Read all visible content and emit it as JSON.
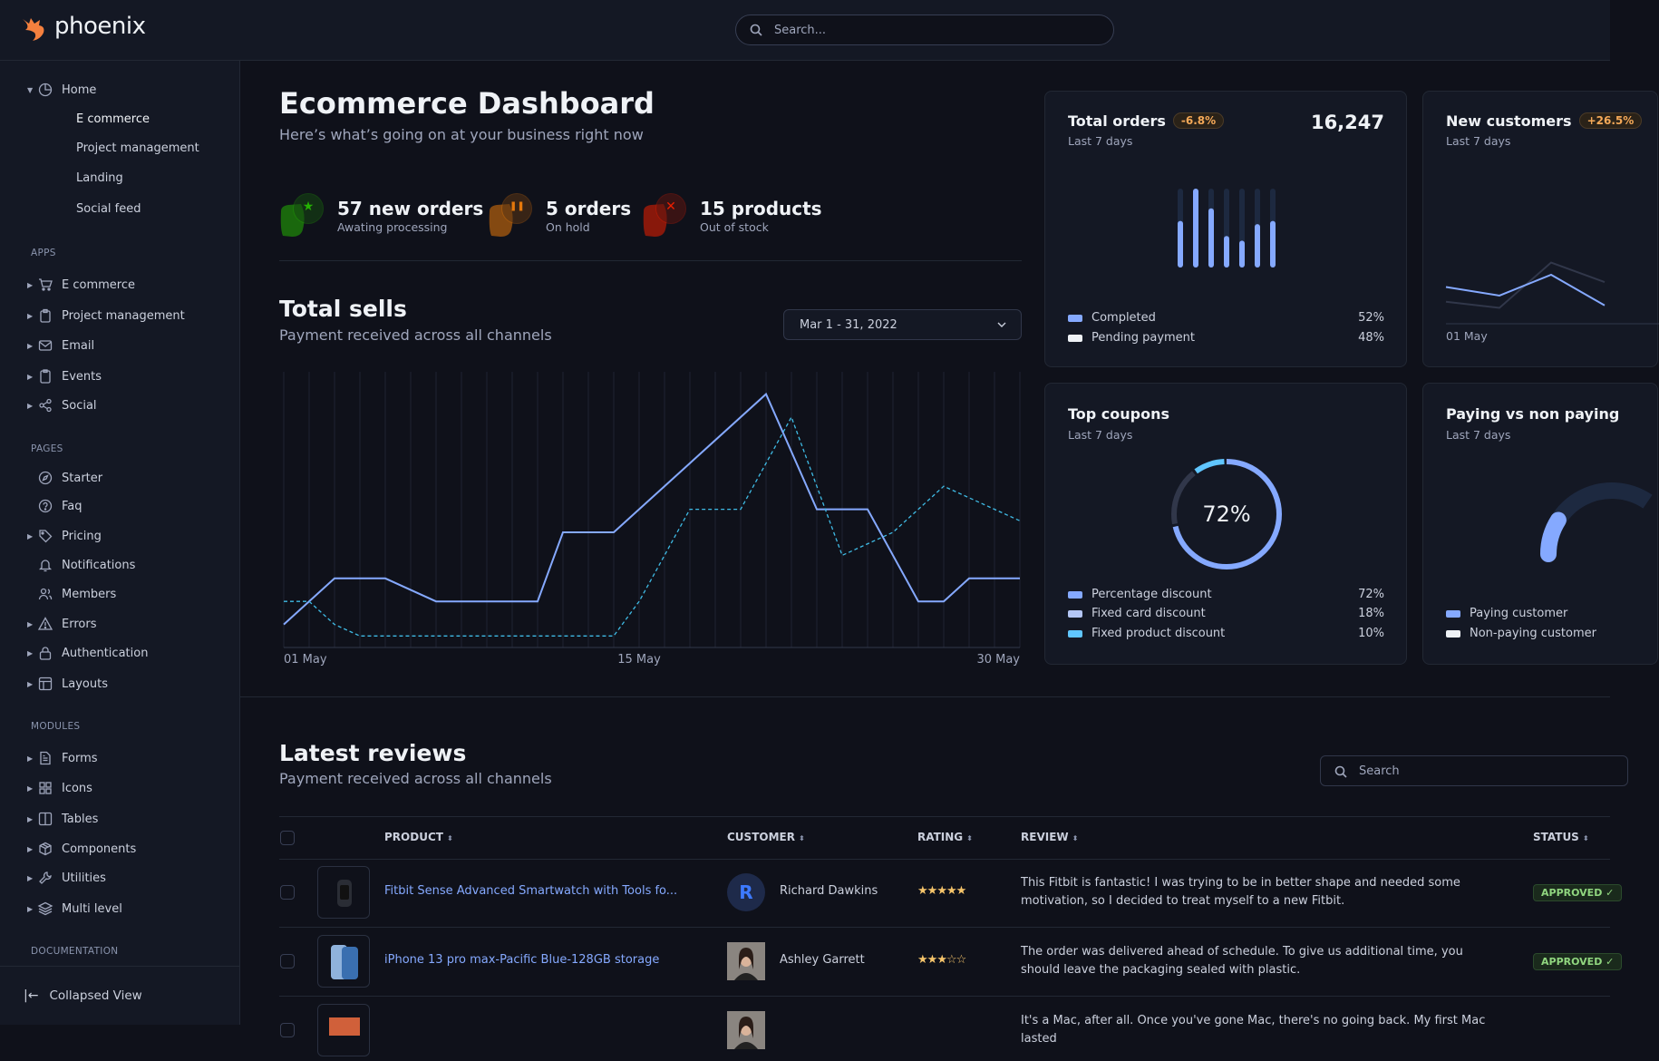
{
  "header": {
    "brand": "phoenix",
    "search_placeholder": "Search..."
  },
  "sidebar": {
    "home": {
      "label": "Home",
      "children": [
        "E commerce",
        "Project management",
        "Landing",
        "Social feed"
      ],
      "active": "E commerce"
    },
    "sections": [
      {
        "title": "APPS",
        "items": [
          {
            "label": "E commerce",
            "icon": "cart-icon"
          },
          {
            "label": "Project management",
            "icon": "clipboard-icon"
          },
          {
            "label": "Email",
            "icon": "mail-icon"
          },
          {
            "label": "Events",
            "icon": "bookmark-icon"
          },
          {
            "label": "Social",
            "icon": "share-icon"
          }
        ]
      },
      {
        "title": "PAGES",
        "items": [
          {
            "label": "Starter",
            "icon": "compass-icon",
            "caret": false
          },
          {
            "label": "Faq",
            "icon": "help-circle-icon",
            "caret": false
          },
          {
            "label": "Pricing",
            "icon": "tag-icon",
            "caret": true
          },
          {
            "label": "Notifications",
            "icon": "bell-icon",
            "caret": false
          },
          {
            "label": "Members",
            "icon": "users-icon",
            "caret": false
          },
          {
            "label": "Errors",
            "icon": "alert-triangle-icon",
            "caret": true
          },
          {
            "label": "Authentication",
            "icon": "lock-icon",
            "caret": true
          },
          {
            "label": "Layouts",
            "icon": "layout-icon",
            "caret": true
          }
        ]
      },
      {
        "title": "MODULES",
        "items": [
          {
            "label": "Forms",
            "icon": "file-text-icon"
          },
          {
            "label": "Icons",
            "icon": "grid-icon"
          },
          {
            "label": "Tables",
            "icon": "columns-icon"
          },
          {
            "label": "Components",
            "icon": "package-icon"
          },
          {
            "label": "Utilities",
            "icon": "tool-icon"
          },
          {
            "label": "Multi level",
            "icon": "layers-icon"
          }
        ]
      },
      {
        "title": "DOCUMENTATION",
        "items": []
      }
    ],
    "collapse_label": "Collapsed View"
  },
  "page": {
    "title": "Ecommerce Dashboard",
    "subtitle": "Here’s what’s going on at your business right now"
  },
  "stats": [
    {
      "title": "57 new orders",
      "subtitle": "Awating processing",
      "icon": "star-icon",
      "color": "#25b003"
    },
    {
      "title": "5 orders",
      "subtitle": "On hold",
      "icon": "pause-icon",
      "color": "#e5780b"
    },
    {
      "title": "15 products",
      "subtitle": "Out of stock",
      "icon": "x-icon",
      "color": "#ec1f00"
    }
  ],
  "total_sells": {
    "title": "Total sells",
    "subtitle": "Payment received across all channels",
    "date_range": "Mar 1 - 31, 2022"
  },
  "chart_data": [
    {
      "type": "line",
      "title": "Total sells",
      "x_unit": "day of May",
      "x_ticks": [
        "01 May",
        "15 May",
        "30 May"
      ],
      "xlim": [
        1,
        30
      ],
      "ylim": [
        0,
        12
      ],
      "grid": "vertical",
      "series": [
        {
          "style": "solid",
          "color": "#85a9ff",
          "points": [
            [
              1,
              1
            ],
            [
              3,
              3
            ],
            [
              5,
              3
            ],
            [
              7,
              2
            ],
            [
              9,
              2
            ],
            [
              11,
              2
            ],
            [
              12,
              5
            ],
            [
              14,
              5
            ],
            [
              20,
              11
            ],
            [
              22,
              6
            ],
            [
              24,
              6
            ],
            [
              26,
              2
            ],
            [
              27,
              2
            ],
            [
              28,
              3
            ],
            [
              30,
              3
            ]
          ]
        },
        {
          "style": "dashed",
          "color": "#3fbbe5",
          "points": [
            [
              1,
              2
            ],
            [
              2,
              2
            ],
            [
              3,
              1
            ],
            [
              4,
              0.5
            ],
            [
              14,
              0.5
            ],
            [
              15,
              2
            ],
            [
              17,
              6
            ],
            [
              19,
              6
            ],
            [
              21,
              10
            ],
            [
              23,
              4
            ],
            [
              25,
              5
            ],
            [
              27,
              7
            ],
            [
              30,
              5.5
            ]
          ]
        }
      ]
    },
    {
      "type": "bar",
      "title": "Total orders",
      "values": [
        0.59,
        1.0,
        0.75,
        0.4,
        0.34,
        0.55,
        0.59
      ]
    },
    {
      "type": "line",
      "title": "New customers",
      "x_ticks": [
        "01 May"
      ],
      "series": [
        {
          "color": "#85a9ff",
          "values": [
            3,
            2.3,
            4,
            1.5
          ]
        },
        {
          "color": "#31374a",
          "values": [
            1.8,
            1.3,
            5,
            3.4
          ]
        }
      ]
    },
    {
      "type": "pie",
      "title": "Top coupons",
      "center_label": "72%",
      "values": [
        72,
        18,
        10
      ]
    },
    {
      "type": "pie",
      "title": "Paying vs non paying",
      "values": [
        30,
        70
      ]
    }
  ],
  "cards": {
    "total_orders": {
      "title": "Total orders",
      "badge": "-6.8%",
      "period": "Last 7 days",
      "value": "16,247",
      "legend": [
        {
          "label": "Completed",
          "value": "52%",
          "color": "#85a9ff"
        },
        {
          "label": "Pending payment",
          "value": "48%",
          "color": "#eff2f6"
        }
      ]
    },
    "new_customers": {
      "title": "New customers",
      "badge": "+26.5%",
      "period": "Last 7 days",
      "tick": "01 May"
    },
    "top_coupons": {
      "title": "Top coupons",
      "period": "Last 7 days",
      "center": "72%",
      "legend": [
        {
          "label": "Percentage discount",
          "value": "72%",
          "color": "#85a9ff"
        },
        {
          "label": "Fixed card discount",
          "value": "18%",
          "color": "#b4c6f5"
        },
        {
          "label": "Fixed product discount",
          "value": "10%",
          "color": "#60c6ff"
        }
      ]
    },
    "paying": {
      "title": "Paying vs non paying",
      "period": "Last 7 days",
      "legend": [
        {
          "label": "Paying customer",
          "color": "#85a9ff"
        },
        {
          "label": "Non-paying customer",
          "color": "#eff2f6"
        }
      ]
    }
  },
  "reviews": {
    "title": "Latest reviews",
    "subtitle": "Payment received across all channels",
    "search_placeholder": "Search",
    "columns": [
      "PRODUCT",
      "CUSTOMER",
      "RATING",
      "REVIEW",
      "STATUS"
    ],
    "rows": [
      {
        "product": "Fitbit Sense Advanced Smartwatch with Tools fo...",
        "customer": "Richard Dawkins",
        "avatar_initial": "R",
        "rating": 5,
        "review": "This Fitbit is fantastic! I was trying to be in better shape and needed some motivation, so I decided to treat myself to a new Fitbit.",
        "status": "APPROVED"
      },
      {
        "product": "iPhone 13 pro max-Pacific Blue-128GB storage",
        "customer": "Ashley Garrett",
        "rating": 3,
        "review": "The order was delivered ahead of schedule. To give us additional time, you should leave the packaging sealed with plastic.",
        "status": "APPROVED"
      },
      {
        "review": "It's a Mac, after all. Once you've gone Mac, there's no going back. My first Mac lasted"
      }
    ]
  }
}
